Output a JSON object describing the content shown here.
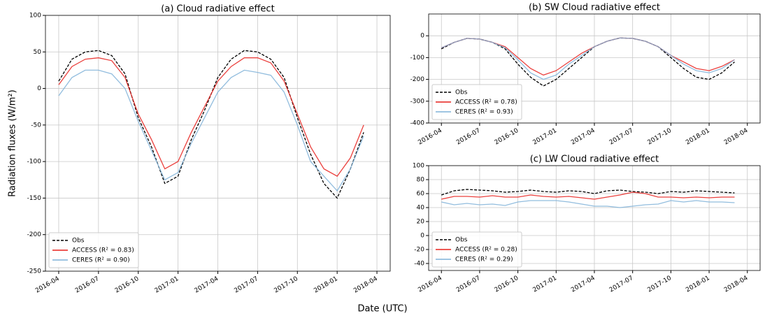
{
  "xlabel": "Date (UTC)",
  "chart_data": [
    {
      "type": "line",
      "title": "(a) Cloud radiative effect",
      "ylabel": "Radiation fluxes (W/m²)",
      "x": [
        "2016-04",
        "2016-05",
        "2016-06",
        "2016-07",
        "2016-08",
        "2016-09",
        "2016-10",
        "2016-11",
        "2016-12",
        "2017-01",
        "2017-02",
        "2017-03",
        "2017-04",
        "2017-05",
        "2017-06",
        "2017-07",
        "2017-08",
        "2017-09",
        "2017-10",
        "2017-11",
        "2017-12",
        "2018-01",
        "2018-02",
        "2018-03"
      ],
      "xlim": [
        "2016-03",
        "2018-05"
      ],
      "xticks": [
        "2016-04",
        "2016-07",
        "2016-10",
        "2017-01",
        "2017-04",
        "2017-07",
        "2017-10",
        "2018-01",
        "2018-04"
      ],
      "ylim": [
        -250,
        100
      ],
      "yticks": [
        -250,
        -200,
        -150,
        -100,
        -50,
        0,
        50,
        100
      ],
      "grid": true,
      "legend": "lower left",
      "series": [
        {
          "name": "Obs",
          "color": "#000000",
          "style": "dashed",
          "values": [
            10,
            40,
            50,
            52,
            45,
            20,
            -40,
            -80,
            -130,
            -120,
            -70,
            -30,
            15,
            40,
            52,
            50,
            40,
            15,
            -40,
            -90,
            -130,
            -150,
            -110,
            -60
          ]
        },
        {
          "name": "ACCESS (R² = 0.83)",
          "color": "#e8201c",
          "style": "solid",
          "values": [
            5,
            30,
            40,
            42,
            38,
            15,
            -35,
            -70,
            -110,
            -100,
            -60,
            -25,
            10,
            30,
            42,
            42,
            35,
            10,
            -35,
            -80,
            -110,
            -120,
            -95,
            -50
          ]
        },
        {
          "name": "CERES (R² = 0.90)",
          "color": "#7fb2d8",
          "style": "solid",
          "values": [
            -10,
            15,
            25,
            25,
            20,
            0,
            -45,
            -85,
            -125,
            -115,
            -75,
            -40,
            -5,
            15,
            25,
            22,
            18,
            -5,
            -50,
            -100,
            -120,
            -140,
            -110,
            -65
          ]
        }
      ]
    },
    {
      "type": "line",
      "title": "(b) SW Cloud radiative effect",
      "x": [
        "2016-04",
        "2016-05",
        "2016-06",
        "2016-07",
        "2016-08",
        "2016-09",
        "2016-10",
        "2016-11",
        "2016-12",
        "2017-01",
        "2017-02",
        "2017-03",
        "2017-04",
        "2017-05",
        "2017-06",
        "2017-07",
        "2017-08",
        "2017-09",
        "2017-10",
        "2017-11",
        "2017-12",
        "2018-01",
        "2018-02",
        "2018-03"
      ],
      "xlim": [
        "2016-03",
        "2018-05"
      ],
      "xticks": [
        "2016-04",
        "2016-07",
        "2016-10",
        "2017-01",
        "2017-04",
        "2017-07",
        "2017-10",
        "2018-01",
        "2018-04"
      ],
      "ylim": [
        -400,
        100
      ],
      "yticks": [
        -400,
        -300,
        -200,
        -100,
        0
      ],
      "grid": true,
      "legend": "lower left",
      "series": [
        {
          "name": "Obs",
          "color": "#000000",
          "style": "dashed",
          "values": [
            -60,
            -30,
            -12,
            -15,
            -30,
            -60,
            -130,
            -190,
            -230,
            -200,
            -150,
            -100,
            -50,
            -25,
            -10,
            -12,
            -25,
            -50,
            -100,
            -150,
            -190,
            -200,
            -170,
            -120
          ]
        },
        {
          "name": "ACCESS (R² = 0.78)",
          "color": "#e8201c",
          "style": "solid",
          "values": [
            -55,
            -30,
            -12,
            -15,
            -30,
            -50,
            -100,
            -150,
            -180,
            -160,
            -120,
            -80,
            -50,
            -25,
            -10,
            -12,
            -25,
            -50,
            -90,
            -120,
            -150,
            -160,
            -140,
            -110
          ]
        },
        {
          "name": "CERES (R² = 0.93)",
          "color": "#7fb2d8",
          "style": "solid",
          "values": [
            -55,
            -30,
            -12,
            -15,
            -30,
            -55,
            -110,
            -170,
            -200,
            -180,
            -130,
            -90,
            -50,
            -25,
            -10,
            -12,
            -25,
            -50,
            -90,
            -130,
            -160,
            -170,
            -150,
            -110
          ]
        }
      ]
    },
    {
      "type": "line",
      "title": "(c) LW Cloud radiative effect",
      "x": [
        "2016-04",
        "2016-05",
        "2016-06",
        "2016-07",
        "2016-08",
        "2016-09",
        "2016-10",
        "2016-11",
        "2016-12",
        "2017-01",
        "2017-02",
        "2017-03",
        "2017-04",
        "2017-05",
        "2017-06",
        "2017-07",
        "2017-08",
        "2017-09",
        "2017-10",
        "2017-11",
        "2017-12",
        "2018-01",
        "2018-02",
        "2018-03"
      ],
      "xlim": [
        "2016-03",
        "2018-05"
      ],
      "xticks": [
        "2016-04",
        "2016-07",
        "2016-10",
        "2017-01",
        "2017-04",
        "2017-07",
        "2017-10",
        "2018-01",
        "2018-04"
      ],
      "ylim": [
        -50,
        100
      ],
      "yticks": [
        -40,
        -20,
        0,
        20,
        40,
        60,
        80,
        100
      ],
      "grid": true,
      "legend": "lower left",
      "series": [
        {
          "name": "Obs",
          "color": "#000000",
          "style": "dashed",
          "values": [
            58,
            64,
            66,
            65,
            64,
            62,
            63,
            65,
            63,
            62,
            64,
            63,
            60,
            64,
            65,
            63,
            62,
            60,
            63,
            62,
            64,
            63,
            62,
            61
          ]
        },
        {
          "name": "ACCESS (R² = 0.28)",
          "color": "#e8201c",
          "style": "solid",
          "values": [
            52,
            56,
            56,
            55,
            57,
            55,
            55,
            58,
            56,
            55,
            56,
            54,
            52,
            55,
            58,
            62,
            60,
            55,
            55,
            54,
            55,
            54,
            55,
            55
          ]
        },
        {
          "name": "CERES (R² = 0.29)",
          "color": "#7fb2d8",
          "style": "solid",
          "values": [
            48,
            44,
            46,
            44,
            45,
            43,
            48,
            50,
            50,
            50,
            48,
            45,
            42,
            42,
            40,
            42,
            44,
            45,
            50,
            48,
            50,
            48,
            48,
            47
          ]
        }
      ]
    }
  ]
}
